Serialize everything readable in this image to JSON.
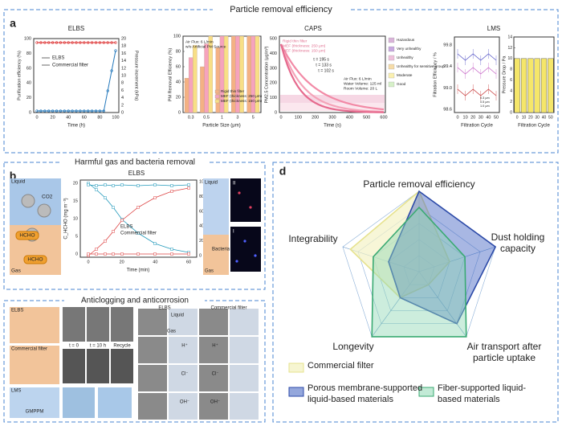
{
  "panel_a": {
    "label": "a",
    "title": "Particle removal efficiency",
    "elbs": {
      "title": "ELBS",
      "y_label": "Purification efficiency (%)",
      "y2_label": "Pressure increment (kPa)",
      "x_label": "Time (h)",
      "xticks": [
        "0",
        "20",
        "40",
        "60",
        "80",
        "100"
      ],
      "yticks": [
        "0",
        "20",
        "40",
        "60",
        "80",
        "100"
      ],
      "y2ticks": [
        "0",
        "2",
        "4",
        "6",
        "8",
        "10",
        "12",
        "14",
        "16",
        "18",
        "20"
      ],
      "legend": [
        "ELBS",
        "Commercial filter"
      ]
    },
    "caps": {
      "title": "CAPS",
      "bar": {
        "type": "bar",
        "y_label": "PM Removal Efficiency (%)",
        "x_label": "Particle Size (μm)",
        "categories": [
          "0.3",
          "0.5",
          "1",
          "3",
          "5"
        ],
        "ylim": [
          0,
          100
        ],
        "yticks": [
          0,
          20,
          40,
          60,
          80,
          100
        ],
        "note": [
          "Air Flux: 6 L/min",
          "w/o Artificial PM Source"
        ],
        "series": [
          {
            "name": "Rigid thin filter",
            "color": "#f4b183",
            "values": [
              45,
              60,
              85,
              100,
              100
            ]
          },
          {
            "name": "MEF (thickness: 250 μm)",
            "color": "#f6a3bd",
            "values": [
              72,
              90,
              100,
              100,
              100
            ]
          },
          {
            "name": "MEF (thickness: 150 μm)",
            "color": "#f8df86",
            "values": [
              88,
              100,
              100,
              100,
              100
            ]
          }
        ]
      },
      "decay": {
        "y_label": "PM2.5 Concentration (μg/m³)",
        "x_label": "Time (s)",
        "xticks": [
          "0",
          "100",
          "200",
          "300",
          "400",
          "500",
          "600"
        ],
        "yticks": [
          "0",
          "100",
          "200",
          "300",
          "400",
          "500"
        ],
        "legend": [
          "Rigid thin filter",
          "MEF (thickness: 250 μm)",
          "MEF (thickness: 150 μm)"
        ],
        "taus": [
          "τ = 195 s",
          "τ = 133 s",
          "τ = 102 s"
        ],
        "note": [
          "Air Flux: 6 L/min",
          "Water Volume: 125 ml",
          "Room Volume: 20 L"
        ],
        "aqi": [
          "Hazardous",
          "Very unhealthy",
          "Unhealthy",
          "Unhealthy for sensitive group",
          "Moderate",
          "Good"
        ]
      }
    },
    "lms": {
      "title": "LMS",
      "eff": {
        "y_label": "Filtration Efficiency / %",
        "x_label": "Filtration Cycle",
        "xticks": [
          "0",
          "10",
          "20",
          "30",
          "40",
          "50"
        ],
        "yticks": [
          "98.6",
          "99.0",
          "99.4",
          "99.8"
        ],
        "legend": [
          "0.3 μm",
          "0.5 μm",
          "1.0 μm"
        ]
      },
      "drop": {
        "type": "bar",
        "y_label": "Pressure Drop / Pa",
        "x_label": "Filtration Cycle",
        "categories": [
          "0",
          "10",
          "20",
          "30",
          "40",
          "50"
        ],
        "ylim": [
          0,
          14
        ],
        "yticks": [
          0,
          2,
          4,
          6,
          8,
          10,
          12,
          14
        ],
        "color": "#f5e66a",
        "values": [
          10,
          10,
          10,
          10,
          10,
          10
        ]
      }
    }
  },
  "panel_b": {
    "label": "b",
    "title": "Harmful gas and bacteria removal",
    "plot_title": "ELBS",
    "left": [
      "Liquid",
      "CO2",
      "HCHO",
      "HCHO",
      "Gas"
    ],
    "plot": {
      "y_label": "C_HCHO (mg m⁻³)",
      "y2_label": "Removal efficiency (%)",
      "x_label": "Time  (min)",
      "xticks": [
        "0",
        "20",
        "40",
        "60"
      ],
      "yticks": [
        "0",
        "5",
        "10",
        "15",
        "20"
      ],
      "y2ticks": [
        "0",
        "20",
        "40",
        "60",
        "80",
        "100"
      ],
      "legend": [
        "ELBS",
        "Commercial filter"
      ]
    },
    "right": [
      "Liquid",
      "Bacteria",
      "Gas",
      "II",
      "I"
    ]
  },
  "panel_c": {
    "label": "c",
    "title": "Anticlogging and anticorrosion",
    "left": [
      "ELBS",
      "Commercial filter",
      "t = 0",
      "t = 10 h",
      "Recycle",
      "LMS",
      "GMPPM"
    ],
    "right": [
      "ELBS",
      "Commercial filter",
      "Liquid",
      "Gas",
      "H⁺",
      "H⁺",
      "Cl⁻",
      "Cl⁻",
      "OH⁻",
      "OH⁻"
    ]
  },
  "panel_d": {
    "label": "d",
    "chart": {
      "type": "radar",
      "axes": [
        "Particle removal efficiency",
        "Dust holding capacity",
        "Air transport after particle uptake",
        "Longevity",
        "Integrability"
      ],
      "rlim": [
        0,
        5
      ],
      "rticks": [
        1,
        2,
        3,
        4,
        5
      ],
      "series": [
        {
          "name": "Commercial filter",
          "color": "#e6e28e",
          "fill": "#f4f2c6",
          "values": [
            5,
            2,
            1,
            2,
            4.5
          ]
        },
        {
          "name": "Porous membrane-supported liquid-based materials",
          "color": "#2c4aa8",
          "fill": "#3d5fc0",
          "values": [
            5,
            5,
            4,
            2,
            2
          ]
        },
        {
          "name": "Fiber-supported liquid-based materials",
          "color": "#3aaa72",
          "fill": "#8fd8b4",
          "values": [
            4,
            3,
            5,
            5,
            3
          ]
        }
      ]
    }
  }
}
